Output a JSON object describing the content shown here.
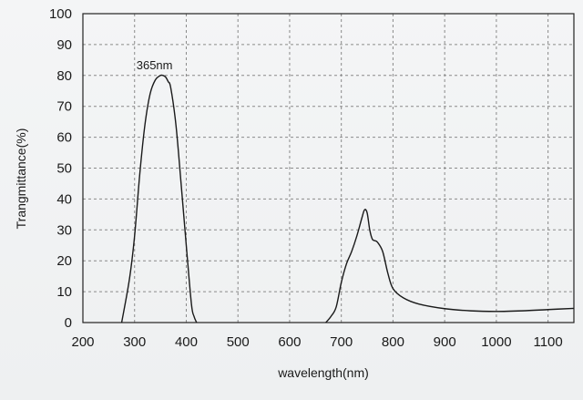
{
  "chart_data": {
    "type": "line",
    "xlabel": "wavelength(nm)",
    "ylabel": "Trangmittance(%)",
    "xlim": [
      200,
      1150
    ],
    "ylim": [
      0,
      100
    ],
    "x_ticks": [
      200,
      300,
      400,
      500,
      600,
      700,
      800,
      900,
      1000,
      1100
    ],
    "y_ticks": [
      0,
      10,
      20,
      30,
      40,
      50,
      60,
      70,
      80,
      90,
      100
    ],
    "grid": true,
    "annotations": [
      {
        "text": "365nm",
        "x": 365,
        "y": 80
      }
    ],
    "series": [
      {
        "color": "#1a1a1a",
        "x": [
          275,
          290,
          300,
          310,
          320,
          330,
          340,
          350,
          355,
          360,
          365,
          370,
          380,
          390,
          400,
          410,
          415,
          420
        ],
        "y": [
          0,
          14,
          28,
          48,
          64,
          74,
          78.5,
          80,
          80,
          79.5,
          78,
          76,
          64,
          45,
          25,
          6,
          2,
          0
        ],
        "segment": 1
      },
      {
        "color": "#1a1a1a",
        "x": [
          670,
          680,
          690,
          700,
          710,
          720,
          730,
          740,
          745,
          750,
          755,
          760,
          765,
          770,
          780,
          790,
          800,
          820,
          850,
          900,
          950,
          1000,
          1050,
          1100,
          1150
        ],
        "y": [
          0,
          2,
          5,
          13,
          19,
          23,
          28,
          34,
          36.5,
          35.5,
          30,
          27,
          26.5,
          26,
          23,
          16,
          11,
          8,
          6,
          4.5,
          3.8,
          3.6,
          3.8,
          4.2,
          4.6
        ],
        "segment": 2
      }
    ]
  }
}
